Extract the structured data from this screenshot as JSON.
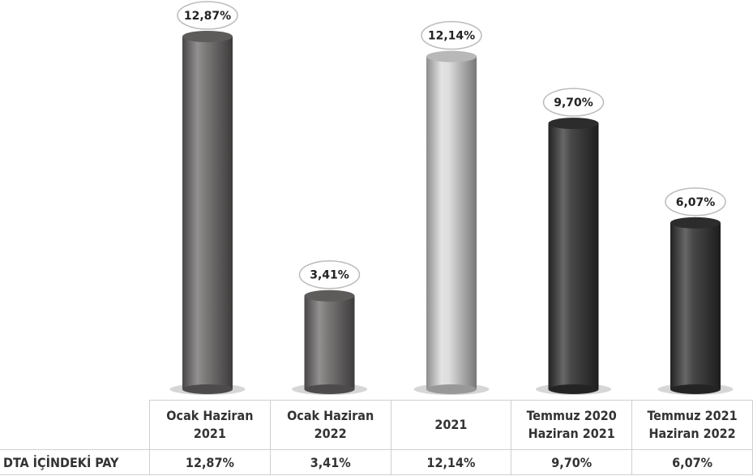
{
  "chart_data": {
    "type": "bar",
    "categories": [
      "Ocak Haziran 2021",
      "Ocak Haziran 2022",
      "2021",
      "Temmuz 2020 Haziran 2021",
      "Temmuz 2021 Haziran 2022"
    ],
    "values": [
      12.87,
      3.41,
      12.14,
      9.7,
      6.07
    ],
    "value_labels": [
      "12,87%",
      "3,41%",
      "12,14%",
      "9,70%",
      "6,07%"
    ],
    "colors": [
      "#6e6b6b",
      "#6e6b6b",
      "#d9d9d9",
      "#343434",
      "#343434"
    ],
    "row_label": "DTA İÇİNDEKİ PAY"
  }
}
